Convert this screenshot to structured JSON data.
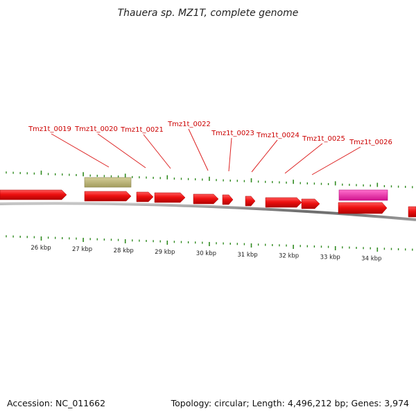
{
  "title": "Thauera sp. MZ1T, complete genome",
  "footer": {
    "accession": "Accession: NC_011662",
    "summary": "Topology: circular; Length: 4,496,212 bp; Genes: 3,974"
  },
  "colors": {
    "backbone": "#7a7a7a",
    "tick": "#2f8a1f",
    "gene_forward": "#ee1111",
    "rna_olive": "#b8b278",
    "rna_magenta": "#ee22a8",
    "label": "#cc0000",
    "leader": "#dd2222"
  },
  "kbp_scale": [
    {
      "kb": 26,
      "label": "26 kbp"
    },
    {
      "kb": 27,
      "label": "27 kbp"
    },
    {
      "kb": 28,
      "label": "28 kbp"
    },
    {
      "kb": 29,
      "label": "29 kbp"
    },
    {
      "kb": 30,
      "label": "30 kbp"
    },
    {
      "kb": 31,
      "label": "31 kbp"
    },
    {
      "kb": 32,
      "label": "32 kbp"
    },
    {
      "kb": 33,
      "label": "33 kbp"
    },
    {
      "kb": 34,
      "label": "34 kbp"
    }
  ],
  "gene_labels": [
    {
      "name": "Tmz1t_0019"
    },
    {
      "name": "Tmz1t_0020"
    },
    {
      "name": "Tmz1t_0021"
    },
    {
      "name": "Tmz1t_0022"
    },
    {
      "name": "Tmz1t_0023"
    },
    {
      "name": "Tmz1t_0024"
    },
    {
      "name": "Tmz1t_0025"
    },
    {
      "name": "Tmz1t_0026"
    }
  ]
}
